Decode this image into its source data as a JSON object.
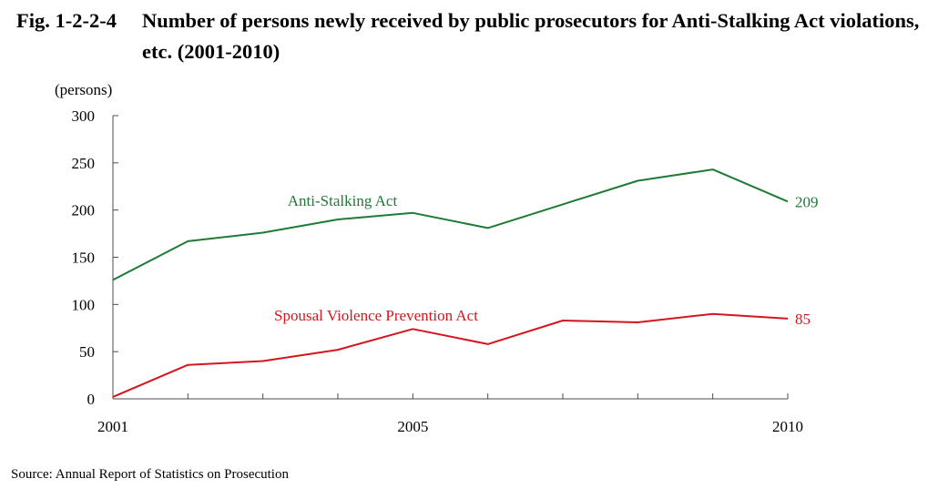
{
  "figure": {
    "number": "Fig. 1-2-2-4",
    "title": "Number of persons newly received by public prosecutors for Anti-Stalking Act violations, etc. (2001-2010)"
  },
  "source": "Source: Annual Report of Statistics on Prosecution",
  "chart_data": {
    "type": "line",
    "title": "Number of persons newly received by public prosecutors for Anti-Stalking Act violations, etc. (2001-2010)",
    "ylabel": "(persons)",
    "xlabel": "",
    "ylim": [
      0,
      300
    ],
    "yticks": [
      0,
      50,
      100,
      150,
      200,
      250,
      300
    ],
    "x": [
      2001,
      2002,
      2003,
      2004,
      2005,
      2006,
      2007,
      2008,
      2009,
      2010
    ],
    "xtick_labels": [
      "2001",
      "2005",
      "2010"
    ],
    "grid": false,
    "legend": "inline labels",
    "series": [
      {
        "name": "Anti-Stalking Act",
        "color": "#1e7b35",
        "values": [
          126,
          167,
          176,
          190,
          197,
          181,
          206,
          231,
          243,
          209
        ],
        "end_label": "209"
      },
      {
        "name": "Spousal Violence Prevention Act",
        "color": "#d6151d",
        "values": [
          2,
          36,
          40,
          52,
          74,
          58,
          83,
          81,
          90,
          85
        ],
        "end_label": "85"
      }
    ]
  }
}
